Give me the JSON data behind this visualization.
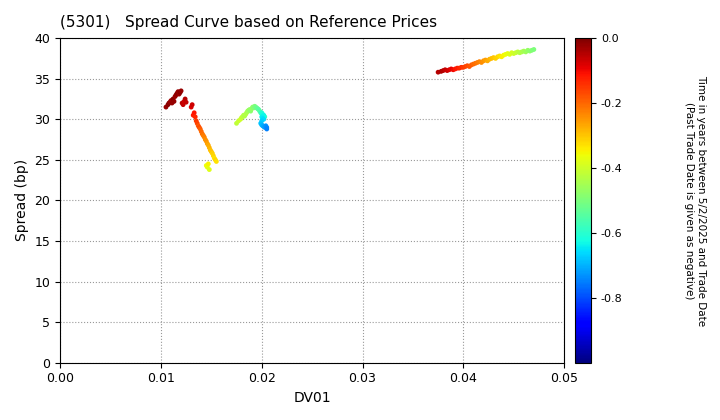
{
  "title": "(5301)   Spread Curve based on Reference Prices",
  "xlabel": "DV01",
  "ylabel": "Spread (bp)",
  "xlim": [
    0.0,
    0.05
  ],
  "ylim": [
    0,
    40
  ],
  "xticks": [
    0.0,
    0.01,
    0.02,
    0.03,
    0.04,
    0.05
  ],
  "yticks": [
    0,
    5,
    10,
    15,
    20,
    25,
    30,
    35,
    40
  ],
  "colorbar_label": "Time in years between 5/2/2025 and Trade Date\n(Past Trade Date is given as negative)",
  "colorbar_ticks": [
    0.0,
    -0.2,
    -0.4,
    -0.6,
    -0.8
  ],
  "cmap": "jet",
  "clim": [
    -1.0,
    0.0
  ],
  "cluster1_points": [
    [
      0.0105,
      31.5,
      -0.02
    ],
    [
      0.0107,
      31.8,
      -0.01
    ],
    [
      0.0108,
      32.0,
      -0.01
    ],
    [
      0.0109,
      32.1,
      -0.02
    ],
    [
      0.011,
      32.3,
      -0.03
    ],
    [
      0.0111,
      32.0,
      -0.02
    ],
    [
      0.0112,
      32.5,
      -0.01
    ],
    [
      0.0113,
      32.2,
      -0.02
    ],
    [
      0.0114,
      32.8,
      -0.03
    ],
    [
      0.0115,
      33.0,
      -0.02
    ],
    [
      0.0116,
      33.2,
      -0.01
    ],
    [
      0.0117,
      33.4,
      -0.02
    ],
    [
      0.0118,
      33.1,
      -0.03
    ],
    [
      0.0119,
      33.3,
      -0.01
    ],
    [
      0.012,
      33.5,
      -0.02
    ],
    [
      0.0121,
      32.0,
      -0.05
    ],
    [
      0.0122,
      31.8,
      -0.06
    ],
    [
      0.0123,
      32.2,
      -0.07
    ],
    [
      0.0124,
      32.5,
      -0.05
    ],
    [
      0.0125,
      32.1,
      -0.06
    ],
    [
      0.013,
      31.5,
      -0.08
    ],
    [
      0.0131,
      31.8,
      -0.07
    ],
    [
      0.0132,
      30.5,
      -0.12
    ],
    [
      0.0133,
      30.8,
      -0.11
    ],
    [
      0.0134,
      30.3,
      -0.13
    ],
    [
      0.0135,
      29.8,
      -0.15
    ],
    [
      0.0136,
      29.5,
      -0.16
    ],
    [
      0.0137,
      29.2,
      -0.18
    ],
    [
      0.0138,
      29.0,
      -0.17
    ],
    [
      0.0139,
      28.8,
      -0.19
    ],
    [
      0.014,
      28.5,
      -0.2
    ],
    [
      0.0141,
      28.2,
      -0.21
    ],
    [
      0.0142,
      28.0,
      -0.22
    ],
    [
      0.0143,
      27.8,
      -0.23
    ],
    [
      0.0144,
      27.5,
      -0.24
    ],
    [
      0.0145,
      27.3,
      -0.25
    ],
    [
      0.0146,
      27.0,
      -0.26
    ],
    [
      0.0147,
      26.8,
      -0.27
    ],
    [
      0.0148,
      26.5,
      -0.28
    ],
    [
      0.0149,
      26.2,
      -0.29
    ],
    [
      0.015,
      26.0,
      -0.3
    ],
    [
      0.0151,
      25.8,
      -0.31
    ],
    [
      0.0152,
      25.5,
      -0.32
    ],
    [
      0.0153,
      25.2,
      -0.33
    ],
    [
      0.0154,
      25.0,
      -0.32
    ],
    [
      0.0155,
      24.8,
      -0.33
    ],
    [
      0.0145,
      24.3,
      -0.36
    ],
    [
      0.0146,
      24.1,
      -0.37
    ],
    [
      0.0147,
      24.5,
      -0.35
    ],
    [
      0.0148,
      23.8,
      -0.38
    ]
  ],
  "cluster2_points": [
    [
      0.0175,
      29.5,
      -0.42
    ],
    [
      0.0177,
      29.8,
      -0.41
    ],
    [
      0.0179,
      30.0,
      -0.4
    ],
    [
      0.018,
      30.2,
      -0.41
    ],
    [
      0.0181,
      30.3,
      -0.42
    ],
    [
      0.0182,
      30.5,
      -0.43
    ],
    [
      0.0183,
      30.4,
      -0.44
    ],
    [
      0.0184,
      30.6,
      -0.43
    ],
    [
      0.0185,
      30.8,
      -0.44
    ],
    [
      0.0186,
      31.0,
      -0.45
    ],
    [
      0.0187,
      31.1,
      -0.46
    ],
    [
      0.0188,
      31.2,
      -0.47
    ],
    [
      0.0189,
      31.0,
      -0.48
    ],
    [
      0.019,
      31.3,
      -0.47
    ],
    [
      0.0191,
      31.5,
      -0.48
    ],
    [
      0.0192,
      31.4,
      -0.49
    ],
    [
      0.0193,
      31.6,
      -0.5
    ],
    [
      0.0194,
      31.5,
      -0.51
    ],
    [
      0.0195,
      31.4,
      -0.52
    ],
    [
      0.0196,
      31.3,
      -0.53
    ],
    [
      0.0197,
      31.2,
      -0.54
    ],
    [
      0.0198,
      31.0,
      -0.55
    ],
    [
      0.0199,
      30.8,
      -0.56
    ],
    [
      0.02,
      30.7,
      -0.57
    ],
    [
      0.0201,
      30.5,
      -0.58
    ],
    [
      0.0202,
      30.4,
      -0.59
    ],
    [
      0.0203,
      30.3,
      -0.6
    ],
    [
      0.02,
      30.8,
      -0.61
    ],
    [
      0.0201,
      30.6,
      -0.62
    ],
    [
      0.0202,
      30.5,
      -0.63
    ],
    [
      0.02,
      30.3,
      -0.64
    ],
    [
      0.0201,
      30.1,
      -0.65
    ],
    [
      0.0202,
      30.0,
      -0.66
    ],
    [
      0.02,
      29.8,
      -0.67
    ],
    [
      0.0199,
      29.5,
      -0.68
    ],
    [
      0.02,
      29.3,
      -0.69
    ],
    [
      0.0201,
      29.2,
      -0.7
    ],
    [
      0.0202,
      29.1,
      -0.71
    ],
    [
      0.0203,
      29.0,
      -0.72
    ],
    [
      0.0204,
      29.2,
      -0.73
    ],
    [
      0.0205,
      29.0,
      -0.74
    ],
    [
      0.0205,
      28.8,
      -0.75
    ]
  ],
  "cluster3_points": [
    [
      0.0375,
      35.8,
      -0.05
    ],
    [
      0.0378,
      35.9,
      -0.04
    ],
    [
      0.038,
      36.0,
      -0.05
    ],
    [
      0.0382,
      36.1,
      -0.06
    ],
    [
      0.0384,
      36.0,
      -0.07
    ],
    [
      0.0386,
      36.1,
      -0.08
    ],
    [
      0.0388,
      36.2,
      -0.09
    ],
    [
      0.039,
      36.1,
      -0.1
    ],
    [
      0.0392,
      36.2,
      -0.11
    ],
    [
      0.0394,
      36.3,
      -0.12
    ],
    [
      0.0396,
      36.3,
      -0.13
    ],
    [
      0.0398,
      36.4,
      -0.14
    ],
    [
      0.04,
      36.4,
      -0.15
    ],
    [
      0.0402,
      36.5,
      -0.16
    ],
    [
      0.0404,
      36.6,
      -0.17
    ],
    [
      0.0406,
      36.5,
      -0.18
    ],
    [
      0.0408,
      36.7,
      -0.19
    ],
    [
      0.041,
      36.8,
      -0.2
    ],
    [
      0.0412,
      36.9,
      -0.21
    ],
    [
      0.0414,
      37.0,
      -0.22
    ],
    [
      0.0416,
      37.1,
      -0.23
    ],
    [
      0.0418,
      37.0,
      -0.24
    ],
    [
      0.042,
      37.2,
      -0.25
    ],
    [
      0.0422,
      37.3,
      -0.26
    ],
    [
      0.0424,
      37.2,
      -0.27
    ],
    [
      0.0426,
      37.4,
      -0.28
    ],
    [
      0.0428,
      37.5,
      -0.29
    ],
    [
      0.043,
      37.6,
      -0.3
    ],
    [
      0.0432,
      37.5,
      -0.31
    ],
    [
      0.0434,
      37.7,
      -0.32
    ],
    [
      0.0436,
      37.8,
      -0.33
    ],
    [
      0.0438,
      37.7,
      -0.34
    ],
    [
      0.044,
      37.9,
      -0.35
    ],
    [
      0.0442,
      38.0,
      -0.36
    ],
    [
      0.0444,
      38.1,
      -0.37
    ],
    [
      0.0446,
      38.0,
      -0.38
    ],
    [
      0.0448,
      38.2,
      -0.39
    ],
    [
      0.045,
      38.1,
      -0.4
    ],
    [
      0.0452,
      38.2,
      -0.41
    ],
    [
      0.0454,
      38.3,
      -0.42
    ],
    [
      0.0456,
      38.2,
      -0.43
    ],
    [
      0.0458,
      38.3,
      -0.44
    ],
    [
      0.046,
      38.4,
      -0.45
    ],
    [
      0.0462,
      38.3,
      -0.46
    ],
    [
      0.0464,
      38.5,
      -0.47
    ],
    [
      0.0466,
      38.4,
      -0.48
    ],
    [
      0.0468,
      38.5,
      -0.49
    ],
    [
      0.047,
      38.6,
      -0.5
    ]
  ],
  "background_color": "#ffffff",
  "grid_color": "#999999",
  "marker_size": 12,
  "marker": "o",
  "title_fontsize": 11,
  "tick_fontsize": 9,
  "label_fontsize": 10
}
